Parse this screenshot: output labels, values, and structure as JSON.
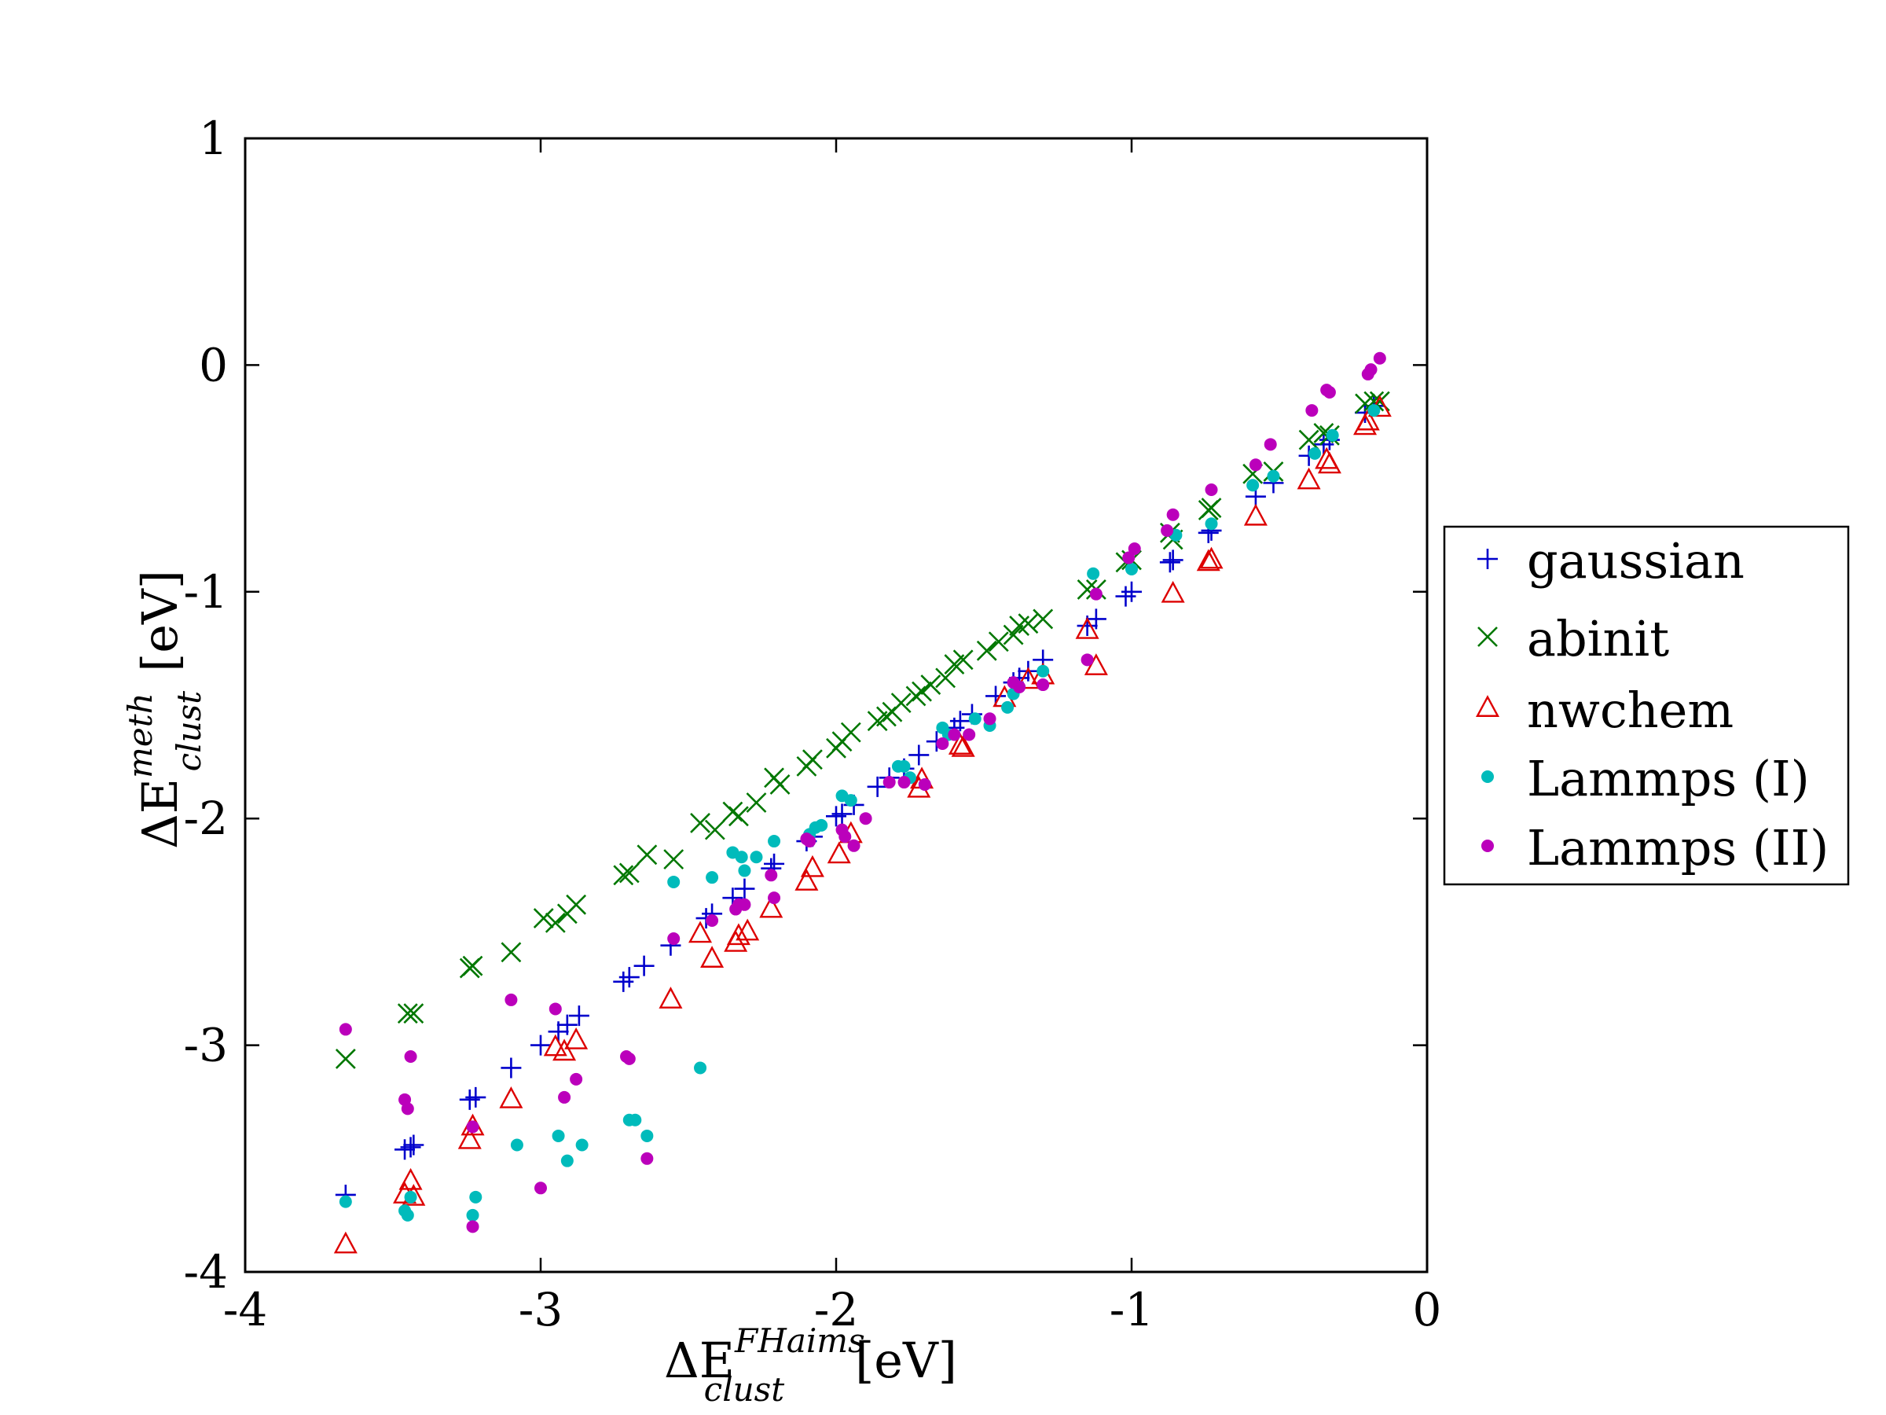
{
  "chart_data": {
    "type": "scatter",
    "title": "",
    "xlabel": {
      "base": "ΔE",
      "sup": "FHaims",
      "sub": "clust",
      "unit": "[eV]"
    },
    "ylabel": {
      "base": "ΔE",
      "sup": "meth",
      "sub": "clust",
      "unit": "[eV]"
    },
    "xlim": [
      -4,
      0
    ],
    "ylim": [
      -4,
      1
    ],
    "xticks": [
      -4,
      -3,
      -2,
      -1,
      0
    ],
    "yticks": [
      -4,
      -3,
      -2,
      -1,
      0,
      1
    ],
    "xtick_labels": [
      "-4",
      "-3",
      "-2",
      "-1",
      "0"
    ],
    "ytick_labels": [
      "-4",
      "-3",
      "-2",
      "-1",
      "0",
      "1"
    ],
    "grid": false,
    "legend_position": "right",
    "series": [
      {
        "name": "gaussian",
        "marker": "plus",
        "color": "#0000cc",
        "x": [
          -3.66,
          -3.46,
          -3.44,
          -3.43,
          -3.24,
          -3.22,
          -3.1,
          -3.0,
          -2.94,
          -2.91,
          -2.87,
          -2.72,
          -2.7,
          -2.65,
          -2.56,
          -2.44,
          -2.42,
          -2.35,
          -2.31,
          -2.22,
          -2.21,
          -2.1,
          -2.08,
          -2.0,
          -1.98,
          -1.94,
          -1.86,
          -1.82,
          -1.77,
          -1.72,
          -1.66,
          -1.6,
          -1.58,
          -1.54,
          -1.46,
          -1.4,
          -1.38,
          -1.35,
          -1.3,
          -1.15,
          -1.12,
          -1.02,
          -1.0,
          -0.87,
          -0.86,
          -0.74,
          -0.73,
          -0.58,
          -0.52,
          -0.4,
          -0.35,
          -0.33,
          -0.21,
          -0.18
        ],
        "y": [
          -3.66,
          -3.46,
          -3.45,
          -3.44,
          -3.24,
          -3.23,
          -3.1,
          -3.0,
          -2.94,
          -2.91,
          -2.87,
          -2.72,
          -2.7,
          -2.65,
          -2.56,
          -2.44,
          -2.42,
          -2.35,
          -2.31,
          -2.22,
          -2.2,
          -2.1,
          -2.08,
          -1.99,
          -1.98,
          -1.94,
          -1.86,
          -1.82,
          -1.78,
          -1.72,
          -1.66,
          -1.6,
          -1.57,
          -1.54,
          -1.46,
          -1.4,
          -1.38,
          -1.35,
          -1.3,
          -1.15,
          -1.12,
          -1.02,
          -1.0,
          -0.87,
          -0.86,
          -0.74,
          -0.73,
          -0.58,
          -0.52,
          -0.4,
          -0.35,
          -0.33,
          -0.21,
          -0.18
        ]
      },
      {
        "name": "abinit",
        "marker": "x",
        "color": "#007700",
        "x": [
          -3.66,
          -3.45,
          -3.43,
          -3.24,
          -3.23,
          -3.1,
          -2.99,
          -2.95,
          -2.91,
          -2.88,
          -2.72,
          -2.7,
          -2.64,
          -2.55,
          -2.46,
          -2.41,
          -2.35,
          -2.33,
          -2.27,
          -2.21,
          -2.19,
          -2.1,
          -2.08,
          -2.0,
          -1.98,
          -1.95,
          -1.86,
          -1.83,
          -1.81,
          -1.78,
          -1.73,
          -1.71,
          -1.68,
          -1.63,
          -1.6,
          -1.57,
          -1.49,
          -1.45,
          -1.4,
          -1.38,
          -1.35,
          -1.3,
          -1.15,
          -1.12,
          -1.02,
          -1.0,
          -0.87,
          -0.86,
          -0.74,
          -0.73,
          -0.59,
          -0.52,
          -0.4,
          -0.35,
          -0.33,
          -0.21,
          -0.18,
          -0.16
        ],
        "y": [
          -3.06,
          -2.86,
          -2.86,
          -2.66,
          -2.65,
          -2.59,
          -2.44,
          -2.46,
          -2.42,
          -2.38,
          -2.25,
          -2.24,
          -2.16,
          -2.18,
          -2.02,
          -2.05,
          -1.97,
          -1.99,
          -1.93,
          -1.82,
          -1.85,
          -1.77,
          -1.74,
          -1.69,
          -1.66,
          -1.62,
          -1.57,
          -1.55,
          -1.53,
          -1.49,
          -1.46,
          -1.44,
          -1.41,
          -1.38,
          -1.32,
          -1.3,
          -1.26,
          -1.22,
          -1.19,
          -1.15,
          -1.14,
          -1.12,
          -0.99,
          -0.99,
          -0.87,
          -0.86,
          -0.74,
          -0.77,
          -0.64,
          -0.63,
          -0.48,
          -0.47,
          -0.33,
          -0.3,
          -0.31,
          -0.17,
          -0.16,
          -0.16
        ]
      },
      {
        "name": "nwchem",
        "marker": "triangle",
        "color": "#dd0000",
        "x": [
          -3.66,
          -3.46,
          -3.44,
          -3.43,
          -3.24,
          -3.23,
          -3.1,
          -2.95,
          -2.92,
          -2.88,
          -2.56,
          -2.46,
          -2.42,
          -2.34,
          -2.33,
          -2.3,
          -2.22,
          -2.1,
          -2.08,
          -1.99,
          -1.95,
          -1.72,
          -1.71,
          -1.58,
          -1.57,
          -1.43,
          -1.35,
          -1.3,
          -1.15,
          -1.12,
          -0.86,
          -0.74,
          -0.73,
          -0.58,
          -0.4,
          -0.34,
          -0.33,
          -0.21,
          -0.2,
          -0.16
        ],
        "y": [
          -3.88,
          -3.66,
          -3.6,
          -3.67,
          -3.42,
          -3.36,
          -3.24,
          -3.01,
          -3.03,
          -2.98,
          -2.8,
          -2.51,
          -2.62,
          -2.55,
          -2.52,
          -2.5,
          -2.4,
          -2.28,
          -2.22,
          -2.16,
          -2.07,
          -1.87,
          -1.83,
          -1.68,
          -1.69,
          -1.47,
          -1.39,
          -1.37,
          -1.17,
          -1.33,
          -1.01,
          -0.87,
          -0.86,
          -0.67,
          -0.51,
          -0.42,
          -0.44,
          -0.27,
          -0.25,
          -0.19
        ]
      },
      {
        "name": "Lammps (I)",
        "marker": "dot",
        "color": "#00bbbb",
        "x": [
          -3.66,
          -3.46,
          -3.45,
          -3.44,
          -3.23,
          -3.22,
          -3.08,
          -2.94,
          -2.91,
          -2.86,
          -2.7,
          -2.68,
          -2.64,
          -2.55,
          -2.46,
          -2.42,
          -2.35,
          -2.32,
          -2.31,
          -2.27,
          -2.21,
          -2.09,
          -2.07,
          -2.05,
          -1.98,
          -1.95,
          -1.79,
          -1.77,
          -1.75,
          -1.64,
          -1.62,
          -1.53,
          -1.48,
          -1.42,
          -1.4,
          -1.3,
          -1.13,
          -1.0,
          -0.85,
          -0.73,
          -0.59,
          -0.52,
          -0.38,
          -0.32,
          -0.18
        ],
        "y": [
          -3.69,
          -3.73,
          -3.75,
          -3.67,
          -3.75,
          -3.67,
          -3.44,
          -3.4,
          -3.51,
          -3.44,
          -3.33,
          -3.33,
          -3.4,
          -2.28,
          -3.1,
          -2.26,
          -2.15,
          -2.17,
          -2.23,
          -2.17,
          -2.1,
          -2.07,
          -2.04,
          -2.03,
          -1.9,
          -1.92,
          -1.77,
          -1.77,
          -1.82,
          -1.6,
          -1.63,
          -1.56,
          -1.59,
          -1.51,
          -1.45,
          -1.35,
          -0.92,
          -0.9,
          -0.75,
          -0.7,
          -0.53,
          -0.49,
          -0.39,
          -0.31,
          -0.2
        ]
      },
      {
        "name": "Lammps (II)",
        "marker": "dot",
        "color": "#bb00bb",
        "x": [
          -3.66,
          -3.46,
          -3.45,
          -3.44,
          -3.23,
          -3.23,
          -3.1,
          -3.0,
          -2.95,
          -2.92,
          -2.88,
          -2.71,
          -2.7,
          -2.64,
          -2.55,
          -2.42,
          -2.34,
          -2.33,
          -2.31,
          -2.22,
          -2.21,
          -2.1,
          -2.09,
          -1.98,
          -1.97,
          -1.94,
          -1.9,
          -1.82,
          -1.77,
          -1.7,
          -1.64,
          -1.6,
          -1.55,
          -1.48,
          -1.4,
          -1.38,
          -1.3,
          -1.15,
          -1.12,
          -1.01,
          -0.99,
          -0.88,
          -0.86,
          -0.73,
          -0.58,
          -0.53,
          -0.39,
          -0.34,
          -0.33,
          -0.2,
          -0.19,
          -0.16
        ],
        "y": [
          -2.93,
          -3.24,
          -3.28,
          -3.05,
          -3.8,
          -3.36,
          -2.8,
          -3.63,
          -2.84,
          -3.23,
          -3.15,
          -3.05,
          -3.06,
          -3.5,
          -2.53,
          -2.45,
          -2.4,
          -2.38,
          -2.38,
          -2.25,
          -2.35,
          -2.09,
          -2.1,
          -2.05,
          -2.08,
          -2.12,
          -2.0,
          -1.84,
          -1.84,
          -1.85,
          -1.67,
          -1.63,
          -1.63,
          -1.56,
          -1.4,
          -1.42,
          -1.41,
          -1.3,
          -1.01,
          -0.85,
          -0.81,
          -0.73,
          -0.66,
          -0.55,
          -0.44,
          -0.35,
          -0.2,
          -0.11,
          -0.12,
          -0.04,
          -0.02,
          0.03
        ]
      }
    ]
  }
}
